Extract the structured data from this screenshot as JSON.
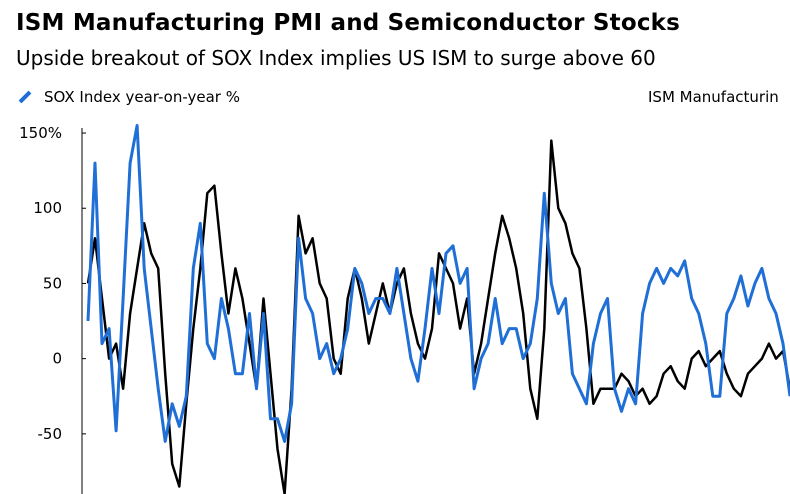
{
  "title": "ISM Manufacturing PMI and Semiconductor Stocks",
  "subtitle": "Upside breakout of SOX Index implies US ISM to surge above 60",
  "legend": {
    "left": "SOX Index year-on-year %",
    "right": "ISM Manufacturin"
  },
  "colors": {
    "sox": "#1f6fd6",
    "ism": "#000000"
  },
  "chart_data": {
    "type": "line",
    "y_axis": {
      "ticks": [
        150,
        100,
        50,
        0,
        -50
      ],
      "tick_labels": [
        "150%",
        "100",
        "50",
        "0",
        "-50"
      ],
      "ylim": [
        -90,
        160
      ]
    },
    "x_range": [
      0,
      100
    ],
    "series": [
      {
        "name": "SOX Index year-on-year %",
        "color": "#1f6fd6",
        "x": [
          0,
          1,
          2,
          3,
          4,
          5,
          6,
          7,
          8,
          9,
          10,
          11,
          12,
          13,
          14,
          15,
          16,
          17,
          18,
          19,
          20,
          21,
          22,
          23,
          24,
          25,
          26,
          27,
          28,
          29,
          30,
          31,
          32,
          33,
          34,
          35,
          36,
          37,
          38,
          39,
          40,
          41,
          42,
          43,
          44,
          45,
          46,
          47,
          48,
          49,
          50,
          51,
          52,
          53,
          54,
          55,
          56,
          57,
          58,
          59,
          60,
          61,
          62,
          63,
          64,
          65,
          66,
          67,
          68,
          69,
          70,
          71,
          72,
          73,
          74,
          75,
          76,
          77,
          78,
          79,
          80,
          81,
          82,
          83,
          84,
          85,
          86,
          87,
          88,
          89,
          90,
          91,
          92,
          93,
          94,
          95,
          96,
          97,
          98,
          99,
          100
        ],
        "values": [
          25,
          130,
          10,
          20,
          -48,
          40,
          130,
          155,
          60,
          20,
          -20,
          -55,
          -30,
          -45,
          -25,
          60,
          90,
          10,
          0,
          40,
          20,
          -10,
          -10,
          30,
          -20,
          30,
          -40,
          -40,
          -55,
          -30,
          80,
          40,
          30,
          0,
          10,
          -10,
          0,
          20,
          60,
          50,
          30,
          40,
          40,
          30,
          60,
          30,
          0,
          -15,
          20,
          60,
          30,
          70,
          75,
          50,
          60,
          -20,
          0,
          10,
          40,
          10,
          20,
          20,
          0,
          10,
          40,
          110,
          50,
          30,
          40,
          -10,
          -20,
          -30,
          10,
          30,
          40,
          -20,
          -35,
          -20,
          -30,
          30,
          50,
          60,
          50,
          60,
          55,
          65,
          40,
          30,
          10,
          -25,
          -25,
          30,
          40,
          55,
          35,
          50,
          60,
          40,
          30,
          10,
          -25
        ]
      },
      {
        "name": "ISM Manufacturing",
        "color": "#000000",
        "x": [
          0,
          1,
          2,
          3,
          4,
          5,
          6,
          7,
          8,
          9,
          10,
          11,
          12,
          13,
          14,
          15,
          16,
          17,
          18,
          19,
          20,
          21,
          22,
          23,
          24,
          25,
          26,
          27,
          28,
          29,
          30,
          31,
          32,
          33,
          34,
          35,
          36,
          37,
          38,
          39,
          40,
          41,
          42,
          43,
          44,
          45,
          46,
          47,
          48,
          49,
          50,
          51,
          52,
          53,
          54,
          55,
          56,
          57,
          58,
          59,
          60,
          61,
          62,
          63,
          64,
          65,
          66,
          67,
          68,
          69,
          70,
          71,
          72,
          73,
          74,
          75,
          76,
          77,
          78,
          79,
          80,
          81,
          82,
          83,
          84,
          85,
          86,
          87,
          88,
          89,
          90,
          91,
          92,
          93,
          94,
          95,
          96,
          97,
          98,
          99,
          100
        ],
        "values": [
          50,
          80,
          40,
          0,
          10,
          -20,
          30,
          60,
          90,
          70,
          60,
          -10,
          -70,
          -85,
          -30,
          20,
          60,
          110,
          115,
          70,
          30,
          60,
          40,
          10,
          -20,
          40,
          -10,
          -60,
          -90,
          -20,
          95,
          70,
          80,
          50,
          40,
          0,
          -10,
          40,
          60,
          40,
          10,
          30,
          50,
          30,
          50,
          60,
          30,
          10,
          0,
          20,
          70,
          60,
          50,
          20,
          40,
          -10,
          10,
          40,
          70,
          95,
          80,
          60,
          30,
          -20,
          -40,
          20,
          145,
          100,
          90,
          70,
          60,
          20,
          -30,
          -20,
          -20,
          -20,
          -10,
          -15,
          -25,
          -20,
          -30,
          -25,
          -10,
          -5,
          -15,
          -20,
          0,
          5,
          -5,
          0,
          5,
          -10,
          -20,
          -25,
          -10,
          -5,
          0,
          10,
          0,
          5,
          -20
        ]
      }
    ]
  }
}
